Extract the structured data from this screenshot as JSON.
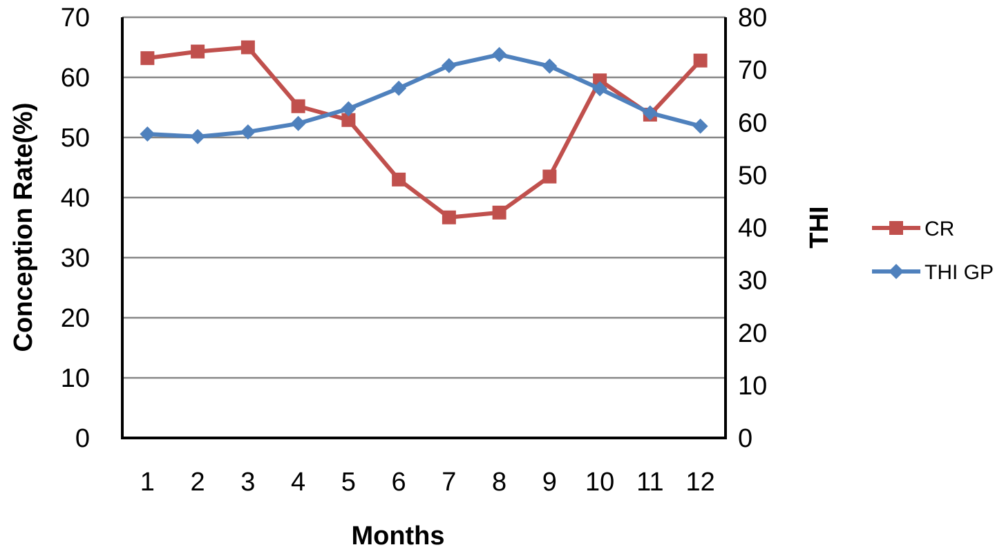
{
  "chart_data": {
    "type": "line",
    "x": [
      1,
      2,
      3,
      4,
      5,
      6,
      7,
      8,
      9,
      10,
      11,
      12
    ],
    "xlabel": "Months",
    "ylabel": "Conception Rate(%)",
    "y2label": "THI",
    "ylim": [
      0,
      70
    ],
    "y2lim": [
      0,
      80
    ],
    "yticks": [
      0,
      10,
      20,
      30,
      40,
      50,
      60,
      70
    ],
    "y2ticks": [
      0,
      10,
      20,
      30,
      40,
      50,
      60,
      70,
      80
    ],
    "grid": true,
    "legend_position": "right",
    "series": [
      {
        "name": "CR",
        "axis": "left",
        "color": "#C0504D",
        "marker": "square",
        "values": [
          63.2,
          64.3,
          65.0,
          55.2,
          52.9,
          43.0,
          36.7,
          37.5,
          43.5,
          59.5,
          53.8,
          62.8
        ]
      },
      {
        "name": "THI GP",
        "axis": "right",
        "color": "#4F81BD",
        "marker": "diamond",
        "values": [
          57.8,
          57.3,
          58.2,
          59.8,
          62.6,
          66.5,
          70.8,
          72.9,
          70.7,
          66.4,
          61.8,
          59.3
        ]
      }
    ]
  }
}
